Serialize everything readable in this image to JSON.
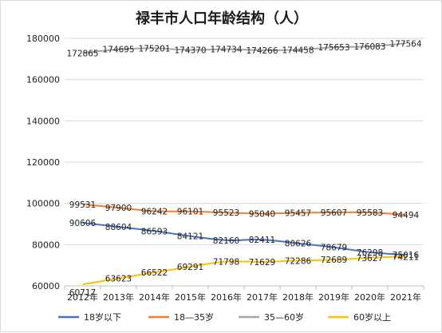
{
  "chart_data": {
    "type": "line",
    "title": "禄丰市人口年龄结构（人）",
    "xlabel": "",
    "ylabel": "",
    "categories": [
      "2012年",
      "2013年",
      "2014年",
      "2015年",
      "2016年",
      "2017年",
      "2018年",
      "2019年",
      "2020年",
      "2021年"
    ],
    "ylim": [
      60000,
      180000
    ],
    "yticks": [
      60000,
      80000,
      100000,
      120000,
      140000,
      160000,
      180000
    ],
    "grid": true,
    "legend_position": "bottom",
    "series": [
      {
        "name": "18岁以下",
        "color": "#4472c4",
        "values": [
          90606,
          88604,
          86593,
          84121,
          82160,
          82411,
          80626,
          78679,
          76298,
          75016
        ]
      },
      {
        "name": "18—35岁",
        "color": "#ed7d31",
        "values": [
          99531,
          97900,
          96242,
          96101,
          95523,
          95040,
          95457,
          95607,
          95583,
          94494
        ]
      },
      {
        "name": "35—60岁",
        "color": "#a5a5a5",
        "values": [
          172865,
          174695,
          175201,
          174370,
          174734,
          174266,
          174458,
          175653,
          176083,
          177564
        ]
      },
      {
        "name": "60岁以上",
        "color": "#ffc000",
        "values": [
          60717,
          63623,
          66522,
          69291,
          71798,
          71629,
          72286,
          72689,
          73627,
          74211
        ]
      }
    ]
  }
}
